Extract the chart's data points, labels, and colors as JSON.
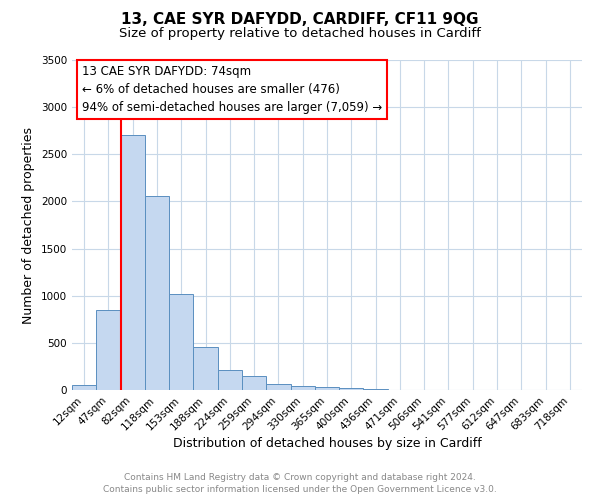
{
  "title": "13, CAE SYR DAFYDD, CARDIFF, CF11 9QG",
  "subtitle": "Size of property relative to detached houses in Cardiff",
  "xlabel": "Distribution of detached houses by size in Cardiff",
  "ylabel": "Number of detached properties",
  "bar_labels": [
    "12sqm",
    "47sqm",
    "82sqm",
    "118sqm",
    "153sqm",
    "188sqm",
    "224sqm",
    "259sqm",
    "294sqm",
    "330sqm",
    "365sqm",
    "400sqm",
    "436sqm",
    "471sqm",
    "506sqm",
    "541sqm",
    "577sqm",
    "612sqm",
    "647sqm",
    "683sqm",
    "718sqm"
  ],
  "bar_values": [
    55,
    850,
    2700,
    2060,
    1020,
    455,
    210,
    145,
    65,
    45,
    30,
    20,
    15,
    5,
    0,
    0,
    0,
    0,
    0,
    0,
    0
  ],
  "bar_color": "#c5d8f0",
  "bar_edge_color": "#5a8fc0",
  "red_line_x": 1.5,
  "ylim": [
    0,
    3500
  ],
  "yticks": [
    0,
    500,
    1000,
    1500,
    2000,
    2500,
    3000,
    3500
  ],
  "annotation_box_text_line1": "13 CAE SYR DAFYDD: 74sqm",
  "annotation_box_text_line2": "← 6% of detached houses are smaller (476)",
  "annotation_box_text_line3": "94% of semi-detached houses are larger (7,059) →",
  "footer_line1": "Contains HM Land Registry data © Crown copyright and database right 2024.",
  "footer_line2": "Contains public sector information licensed under the Open Government Licence v3.0.",
  "bg_color": "#ffffff",
  "grid_color": "#c8d8e8",
  "title_fontsize": 11,
  "subtitle_fontsize": 9.5,
  "axis_label_fontsize": 9,
  "tick_fontsize": 7.5,
  "annotation_fontsize": 8.5,
  "footer_fontsize": 6.5
}
